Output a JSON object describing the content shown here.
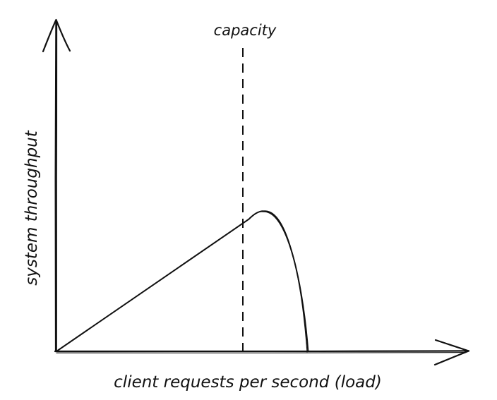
{
  "chart_data": {
    "type": "line",
    "title": "",
    "xlabel": "client requests per second (load)",
    "ylabel": "system throughput",
    "grid": false,
    "legend": "none",
    "line_color": "#111111",
    "series": [
      {
        "points": [
          [
            0,
            0
          ],
          [
            50,
            40
          ],
          [
            100,
            80
          ],
          [
            110,
            75
          ],
          [
            120,
            60
          ],
          [
            130,
            30
          ],
          [
            135,
            0
          ]
        ]
      }
    ],
    "annotations": [
      {
        "type": "vline",
        "x": 100,
        "style": "dashed",
        "label": "capacity"
      }
    ],
    "xlim": [
      0,
      220
    ],
    "ylim": [
      0,
      180
    ]
  }
}
